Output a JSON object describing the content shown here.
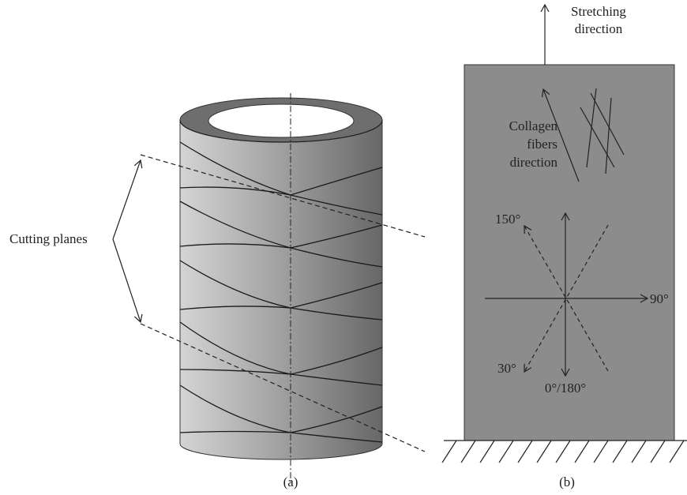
{
  "panel_a": {
    "cutting_label": "Cutting planes",
    "caption": "(a)"
  },
  "panel_b": {
    "stretching": [
      "Stretching",
      "direction"
    ],
    "collagen": [
      "Collagen",
      "fibers",
      "direction"
    ],
    "angles": {
      "a150": "150°",
      "a90": "90°",
      "a30": "30°",
      "a0": "0°/180°"
    },
    "caption": "(b)"
  }
}
